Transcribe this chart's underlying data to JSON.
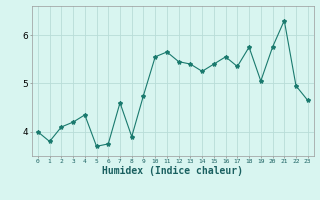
{
  "x": [
    0,
    1,
    2,
    3,
    4,
    5,
    6,
    7,
    8,
    9,
    10,
    11,
    12,
    13,
    14,
    15,
    16,
    17,
    18,
    19,
    20,
    21,
    22,
    23
  ],
  "y": [
    4.0,
    3.8,
    4.1,
    4.2,
    4.35,
    3.7,
    3.75,
    4.6,
    3.9,
    4.75,
    5.55,
    5.65,
    5.45,
    5.4,
    5.25,
    5.4,
    5.55,
    5.35,
    5.75,
    5.05,
    5.75,
    6.3,
    4.95,
    4.65
  ],
  "line_color": "#1a7a6e",
  "marker": "*",
  "marker_size": 3,
  "bg_color": "#d8f5f0",
  "grid_color": "#b8ddd8",
  "xlabel": "Humidex (Indice chaleur)",
  "xlabel_fontsize": 7,
  "ylabel_ticks": [
    4,
    5,
    6
  ],
  "xtick_labels": [
    "0",
    "1",
    "2",
    "3",
    "4",
    "5",
    "6",
    "7",
    "8",
    "9",
    "10",
    "11",
    "12",
    "13",
    "14",
    "15",
    "16",
    "17",
    "18",
    "19",
    "20",
    "21",
    "22",
    "23"
  ],
  "xlim": [
    -0.5,
    23.5
  ],
  "ylim": [
    3.5,
    6.6
  ]
}
